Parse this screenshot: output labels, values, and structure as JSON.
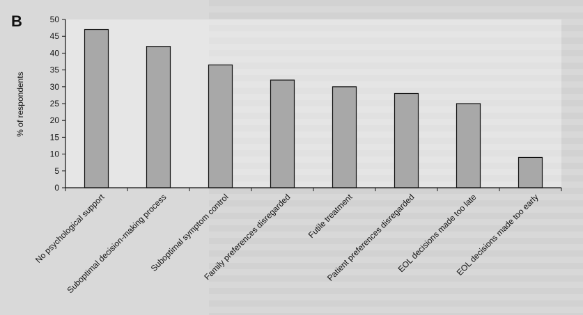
{
  "figure": {
    "panel_label": "B"
  },
  "chart_data": {
    "type": "bar",
    "title": "",
    "xlabel": "",
    "ylabel": "% of respondents",
    "ylim": [
      0,
      50
    ],
    "yticks": [
      0,
      5,
      10,
      15,
      20,
      25,
      30,
      35,
      40,
      45,
      50
    ],
    "grid": false,
    "categories": [
      "No psychological support",
      "Suboptimal decision-making process",
      "Suboptimal symptom control",
      "Family preferences disregarded",
      "Futile treatment",
      "Patient preferences disregarded",
      "EOL decisions made too late",
      "EOL decisions made too early"
    ],
    "values": [
      47,
      42,
      36.5,
      32,
      30,
      28,
      25,
      9
    ],
    "colors": {
      "bar": "#a8a8a8",
      "bar_border": "#111111",
      "axis": "#111111"
    }
  }
}
